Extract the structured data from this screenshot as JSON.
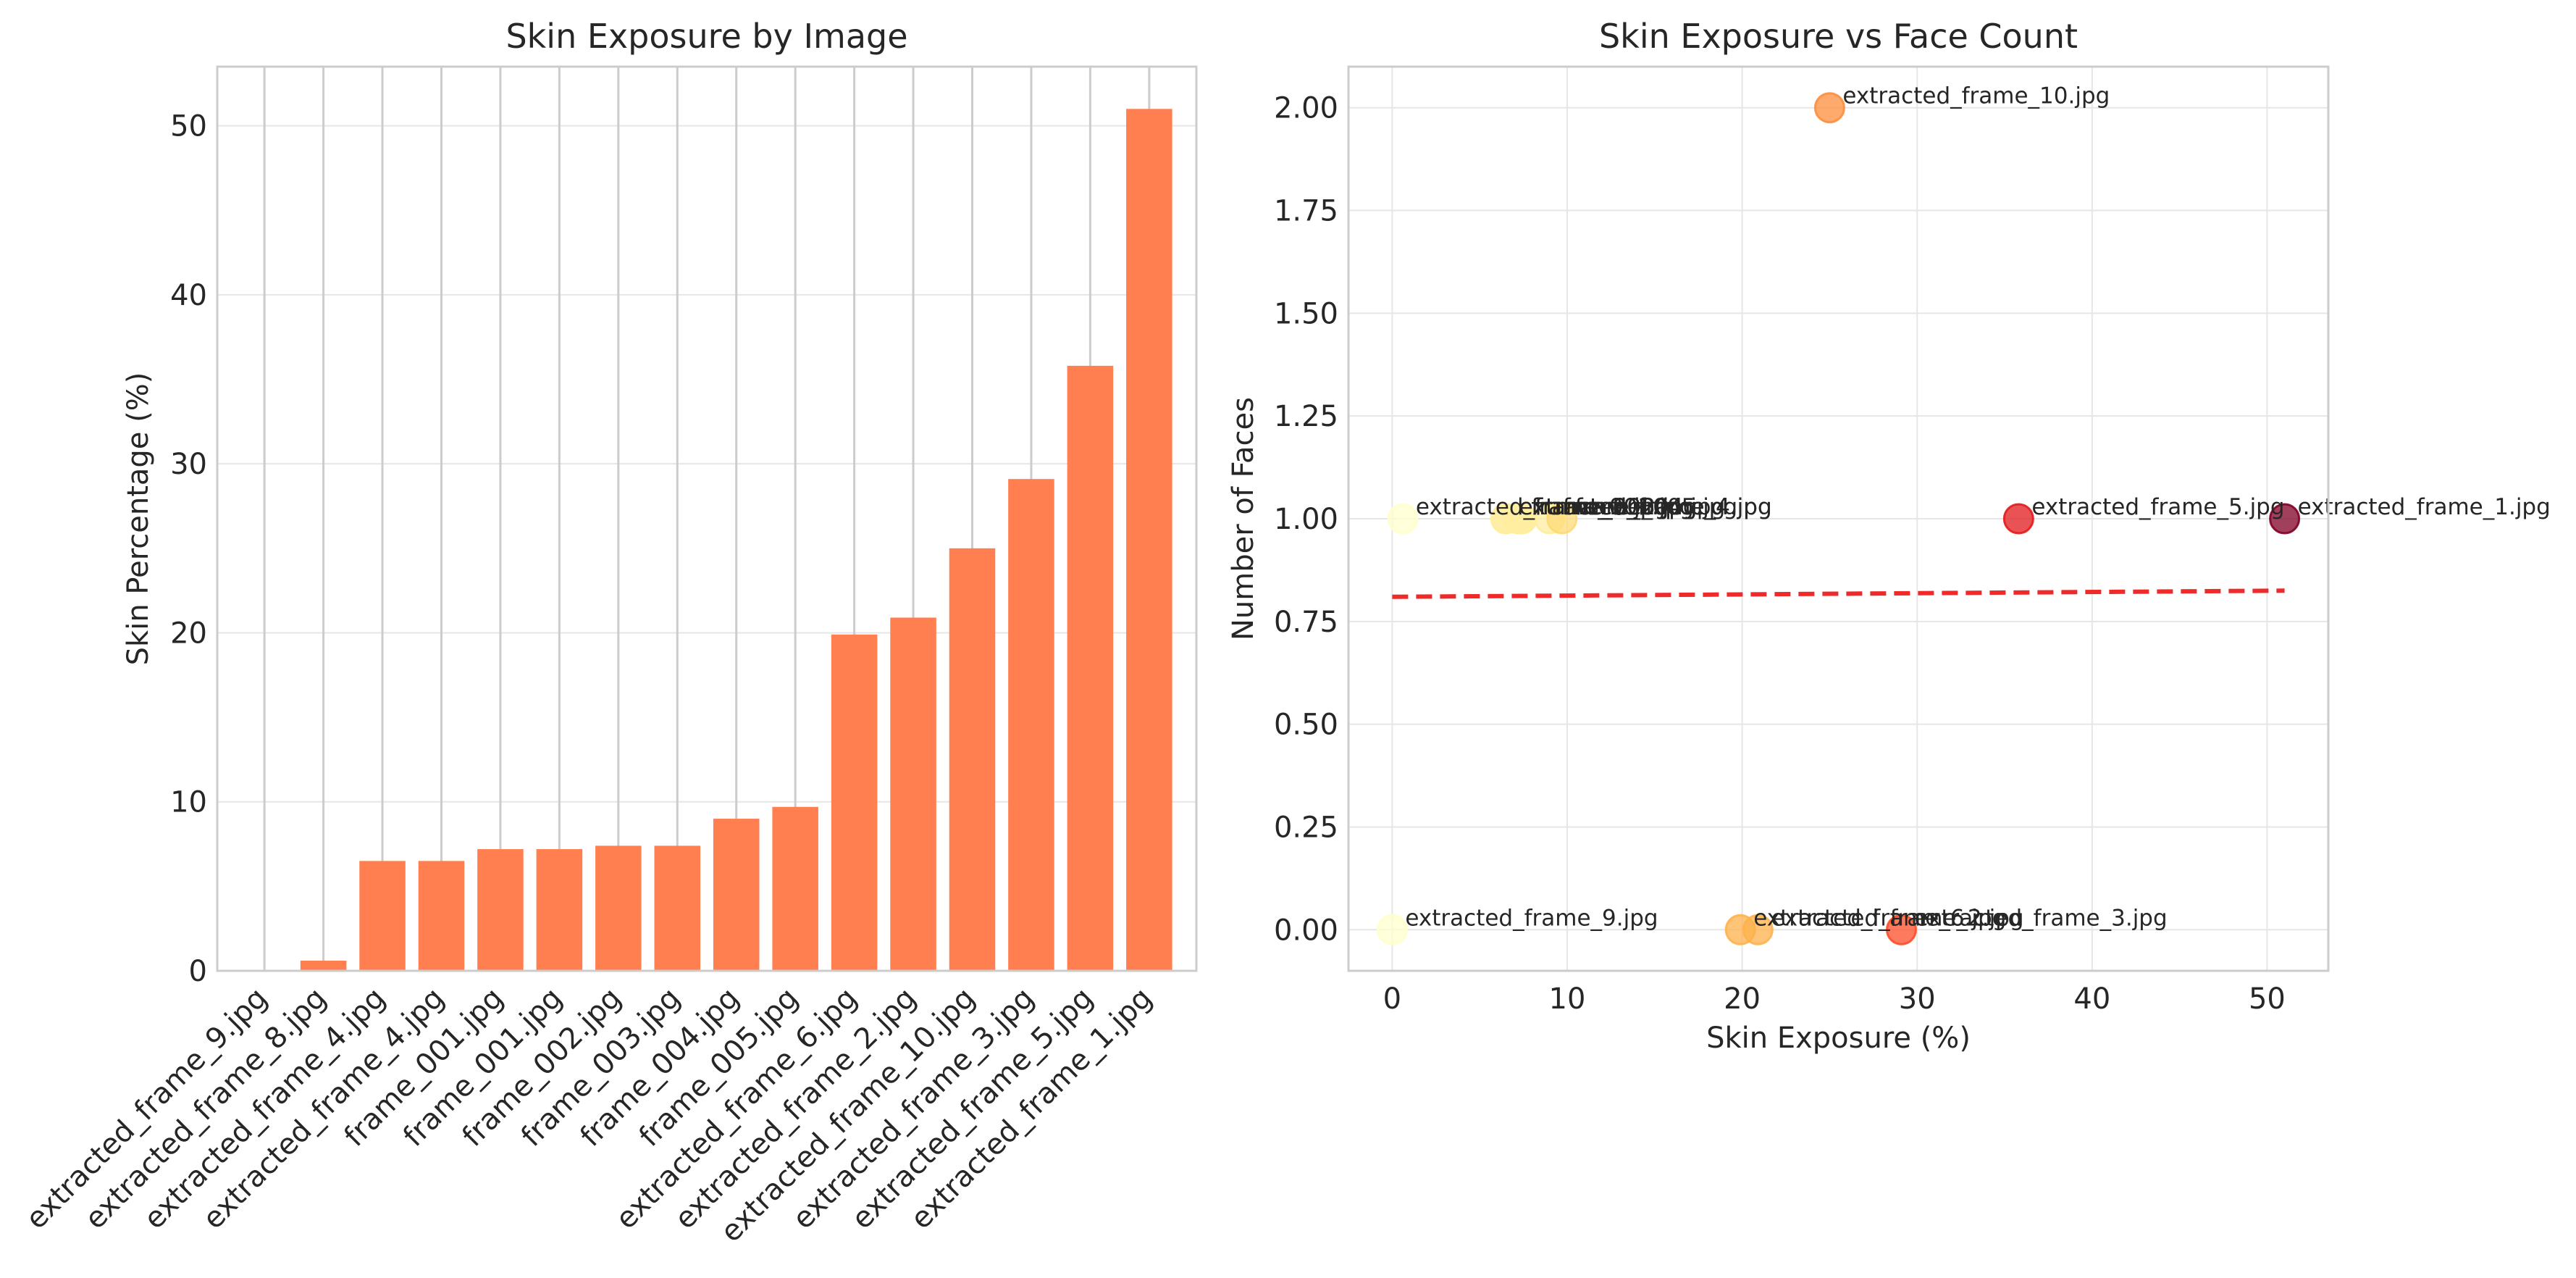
{
  "colors": {
    "bar": "#ff7f50",
    "grid": "#e6e6e6",
    "spine": "#cccccc",
    "trend": "#ee2a2a",
    "colormap": [
      "#ffffcc",
      "#ffeda0",
      "#fed976",
      "#feb24c",
      "#fd8d3c",
      "#fc4e2a",
      "#e31a1c",
      "#bd0026",
      "#800026"
    ]
  },
  "chart_data": [
    {
      "type": "bar",
      "title": "Skin Exposure by Image",
      "xlabel": "",
      "ylabel": "Skin Percentage (%)",
      "categories": [
        "extracted_frame_9.jpg",
        "extracted_frame_8.jpg",
        "extracted_frame_4.jpg",
        "extracted_frame_4.jpg",
        "frame_001.jpg",
        "frame_001.jpg",
        "frame_002.jpg",
        "frame_003.jpg",
        "frame_004.jpg",
        "frame_005.jpg",
        "extracted_frame_6.jpg",
        "extracted_frame_2.jpg",
        "extracted_frame_10.jpg",
        "extracted_frame_3.jpg",
        "extracted_frame_5.jpg",
        "extracted_frame_1.jpg"
      ],
      "values": [
        0,
        0.6,
        6.5,
        6.5,
        7.2,
        7.2,
        7.4,
        7.4,
        9.0,
        9.7,
        19.9,
        20.9,
        25.0,
        29.1,
        35.8,
        51.0
      ],
      "ylim": [
        0,
        53.5
      ],
      "yticks": [
        0,
        10,
        20,
        30,
        40,
        50
      ],
      "grid": true
    },
    {
      "type": "scatter",
      "title": "Skin Exposure vs Face Count",
      "xlabel": "Skin Exposure (%)",
      "ylabel": "Number of Faces",
      "xlim": [
        -2.5,
        53.5
      ],
      "ylim": [
        -0.1,
        2.1
      ],
      "xticks": [
        0,
        10,
        20,
        30,
        40,
        50
      ],
      "yticks": [
        "0.00",
        "0.25",
        "0.50",
        "0.75",
        "1.00",
        "1.25",
        "1.50",
        "1.75",
        "2.00"
      ],
      "points": [
        {
          "x": 0,
          "y": 0,
          "label": "extracted_frame_9.jpg"
        },
        {
          "x": 0.6,
          "y": 1,
          "label": "extracted_frame_8.jpg"
        },
        {
          "x": 6.5,
          "y": 1,
          "label": "extracted_frame_4.jpg"
        },
        {
          "x": 6.5,
          "y": 1,
          "label": "extracted_frame_4.jpg"
        },
        {
          "x": 7.2,
          "y": 1,
          "label": "frame_001.jpg"
        },
        {
          "x": 7.2,
          "y": 1,
          "label": "frame_001.jpg"
        },
        {
          "x": 7.4,
          "y": 1,
          "label": "frame_002.jpg"
        },
        {
          "x": 7.4,
          "y": 1,
          "label": "frame_003.jpg"
        },
        {
          "x": 9.0,
          "y": 1,
          "label": "frame_004.jpg"
        },
        {
          "x": 9.7,
          "y": 1,
          "label": "frame_005.jpg"
        },
        {
          "x": 19.9,
          "y": 0,
          "label": "extracted_frame_6.jpg"
        },
        {
          "x": 20.9,
          "y": 0,
          "label": "extracted_frame_2.jpg"
        },
        {
          "x": 25.0,
          "y": 2,
          "label": "extracted_frame_10.jpg"
        },
        {
          "x": 29.1,
          "y": 0,
          "label": "extracted_frame_3.jpg"
        },
        {
          "x": 35.8,
          "y": 1,
          "label": "extracted_frame_5.jpg"
        },
        {
          "x": 51.0,
          "y": 1,
          "label": "extracted_frame_1.jpg"
        }
      ],
      "trendline": {
        "x": [
          0,
          51.0
        ],
        "y": [
          0.81,
          0.825
        ]
      },
      "grid": true
    }
  ]
}
